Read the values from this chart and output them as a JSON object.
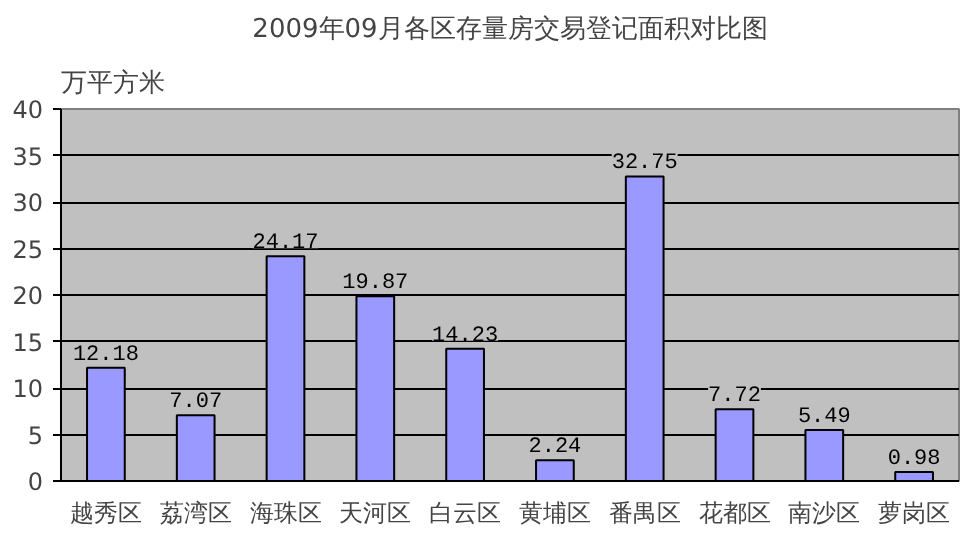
{
  "chart_data": {
    "type": "bar",
    "title": "2009年09月各区存量房交易登记面积对比图",
    "ylabel": "万平方米",
    "categories": [
      "越秀区",
      "荔湾区",
      "海珠区",
      "天河区",
      "白云区",
      "黄埔区",
      "番禺区",
      "花都区",
      "南沙区",
      "萝岗区"
    ],
    "values": [
      12.18,
      7.07,
      24.17,
      19.87,
      14.23,
      2.24,
      32.75,
      7.72,
      5.49,
      0.98
    ],
    "color": "#9999ff",
    "ylim": [
      0,
      40
    ],
    "yticks": [
      0,
      5,
      10,
      15,
      20,
      25,
      30,
      35,
      40
    ],
    "grid": "y",
    "data_labels": true
  }
}
